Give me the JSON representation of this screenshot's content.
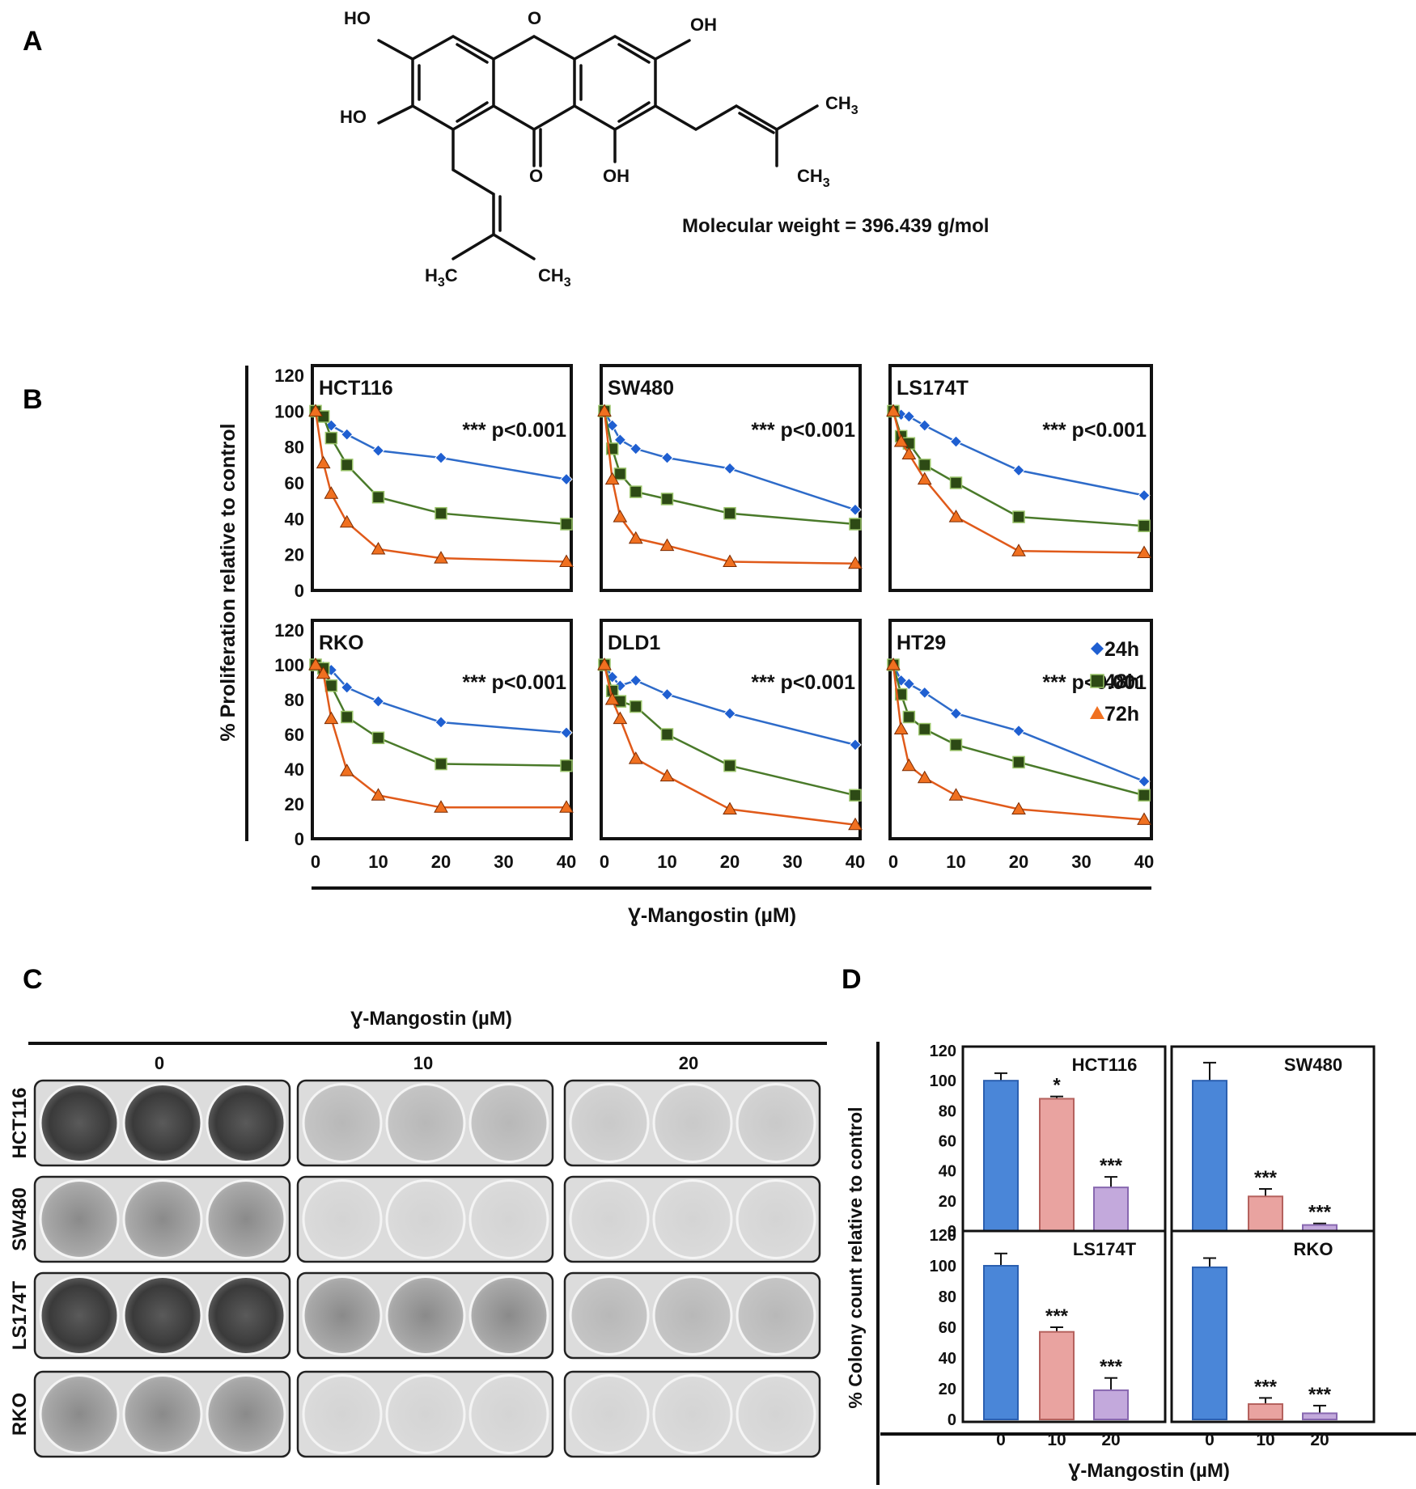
{
  "panel_letters": {
    "a": "A",
    "b": "B",
    "c": "C",
    "d": "D"
  },
  "molecule": {
    "labels": {
      "ho_top": "HO",
      "oh_top": "OH",
      "ho_left": "HO",
      "o_carbonyl": "O",
      "oh_bottom": "OH",
      "ch3_a": "CH",
      "ch3_b": "CH",
      "h3c": "H",
      "ch3_c": "CH",
      "sub3": "3",
      "sub3b": "3",
      "sub3c": "3",
      "sub3d": "3",
      "c_letter": "C"
    },
    "mw_text": "Molecular weight = 396.439 g/mol"
  },
  "panel_b": {
    "ylabel": "% Proliferation relative to control",
    "xlabel": "Ɣ-Mangostin (µM)",
    "pvalue": "*** p<0.001",
    "legend": [
      "24h",
      "48h",
      "72h"
    ]
  },
  "panel_c": {
    "header": "Ɣ-Mangostin (µM)",
    "concentrations": [
      "0",
      "10",
      "20"
    ],
    "rows": [
      "HCT116",
      "SW480",
      "LS174T",
      "RKO"
    ]
  },
  "panel_d": {
    "ylabel": "% Colony count  relative to control",
    "xlabel": "Ɣ-Mangostin (µM)"
  },
  "colors": {
    "s24": "#2e6bc9",
    "s48": "#4a7a2a",
    "s72": "#e05a1a",
    "m24": "#1f5fd1",
    "m48": "#2d4a15",
    "m72": "#f07020",
    "bar0": "#4a86d8",
    "bar10": "#e9a3a0",
    "bar20": "#c3a9dc"
  },
  "chart_data": [
    {
      "type": "line",
      "panel": "B",
      "title": "HCT116",
      "x": [
        0,
        1.25,
        2.5,
        5,
        10,
        20,
        40
      ],
      "series": [
        {
          "name": "24h",
          "values": [
            100,
            97,
            92,
            87,
            78,
            74,
            62
          ]
        },
        {
          "name": "48h",
          "values": [
            100,
            97,
            85,
            70,
            52,
            43,
            37
          ]
        },
        {
          "name": "72h",
          "values": [
            100,
            71,
            54,
            38,
            23,
            18,
            16
          ]
        }
      ],
      "xlim": [
        0,
        40
      ],
      "ylim": [
        0,
        120
      ],
      "annotation": "*** p<0.001"
    },
    {
      "type": "line",
      "panel": "B",
      "title": "SW480",
      "x": [
        0,
        1.25,
        2.5,
        5,
        10,
        20,
        40
      ],
      "series": [
        {
          "name": "24h",
          "values": [
            100,
            92,
            84,
            79,
            74,
            68,
            45
          ]
        },
        {
          "name": "48h",
          "values": [
            100,
            79,
            65,
            55,
            51,
            43,
            37
          ]
        },
        {
          "name": "72h",
          "values": [
            100,
            62,
            41,
            29,
            25,
            16,
            15
          ]
        }
      ],
      "xlim": [
        0,
        40
      ],
      "ylim": [
        0,
        120
      ],
      "annotation": "*** p<0.001"
    },
    {
      "type": "line",
      "panel": "B",
      "title": "LS174T",
      "x": [
        0,
        1.25,
        2.5,
        5,
        10,
        20,
        40
      ],
      "series": [
        {
          "name": "24h",
          "values": [
            100,
            98,
            97,
            92,
            83,
            67,
            53
          ]
        },
        {
          "name": "48h",
          "values": [
            100,
            86,
            82,
            70,
            60,
            41,
            36
          ]
        },
        {
          "name": "72h",
          "values": [
            100,
            83,
            76,
            62,
            41,
            22,
            21
          ]
        }
      ],
      "xlim": [
        0,
        40
      ],
      "ylim": [
        0,
        120
      ],
      "annotation": "*** p<0.001"
    },
    {
      "type": "line",
      "panel": "B",
      "title": "RKO",
      "x": [
        0,
        1.25,
        2.5,
        5,
        10,
        20,
        40
      ],
      "series": [
        {
          "name": "24h",
          "values": [
            100,
            99,
            97,
            87,
            79,
            67,
            61
          ]
        },
        {
          "name": "48h",
          "values": [
            100,
            98,
            88,
            70,
            58,
            43,
            42
          ]
        },
        {
          "name": "72h",
          "values": [
            100,
            95,
            69,
            39,
            25,
            18,
            18
          ]
        }
      ],
      "xlim": [
        0,
        40
      ],
      "ylim": [
        0,
        120
      ],
      "annotation": "*** p<0.001"
    },
    {
      "type": "line",
      "panel": "B",
      "title": "DLD1",
      "x": [
        0,
        1.25,
        2.5,
        5,
        10,
        20,
        40
      ],
      "series": [
        {
          "name": "24h",
          "values": [
            100,
            93,
            88,
            91,
            83,
            72,
            54
          ]
        },
        {
          "name": "48h",
          "values": [
            100,
            85,
            79,
            76,
            60,
            42,
            25
          ]
        },
        {
          "name": "72h",
          "values": [
            100,
            80,
            69,
            46,
            36,
            17,
            8
          ]
        }
      ],
      "xlim": [
        0,
        40
      ],
      "ylim": [
        0,
        120
      ],
      "annotation": "*** p<0.001"
    },
    {
      "type": "line",
      "panel": "B",
      "title": "HT29",
      "x": [
        0,
        1.25,
        2.5,
        5,
        10,
        20,
        40
      ],
      "series": [
        {
          "name": "24h",
          "values": [
            100,
            91,
            89,
            84,
            72,
            62,
            33
          ]
        },
        {
          "name": "48h",
          "values": [
            100,
            83,
            70,
            63,
            54,
            44,
            25
          ]
        },
        {
          "name": "72h",
          "values": [
            100,
            63,
            42,
            35,
            25,
            17,
            11
          ]
        }
      ],
      "xlim": [
        0,
        40
      ],
      "ylim": [
        0,
        120
      ],
      "annotation": "*** p<0.001"
    },
    {
      "type": "bar",
      "panel": "D",
      "title": "HCT116",
      "categories": [
        "0",
        "10",
        "20"
      ],
      "values": [
        100,
        88,
        29
      ],
      "errors": [
        5,
        1.5,
        7
      ],
      "significance": [
        "",
        "*",
        "***"
      ],
      "ylim": [
        0,
        120
      ]
    },
    {
      "type": "bar",
      "panel": "D",
      "title": "SW480",
      "categories": [
        "0",
        "10",
        "20"
      ],
      "values": [
        100,
        23,
        4
      ],
      "errors": [
        12,
        5,
        1
      ],
      "significance": [
        "",
        "***",
        "***"
      ],
      "ylim": [
        0,
        120
      ]
    },
    {
      "type": "bar",
      "panel": "D",
      "title": "LS174T",
      "categories": [
        "0",
        "10",
        "20"
      ],
      "values": [
        100,
        57,
        19
      ],
      "errors": [
        8,
        3,
        8
      ],
      "significance": [
        "",
        "***",
        "***"
      ],
      "ylim": [
        0,
        120
      ]
    },
    {
      "type": "bar",
      "panel": "D",
      "title": "RKO",
      "categories": [
        "0",
        "10",
        "20"
      ],
      "values": [
        99,
        10,
        4
      ],
      "errors": [
        6,
        4,
        5
      ],
      "significance": [
        "",
        "***",
        "***"
      ],
      "ylim": [
        0,
        120
      ]
    }
  ]
}
